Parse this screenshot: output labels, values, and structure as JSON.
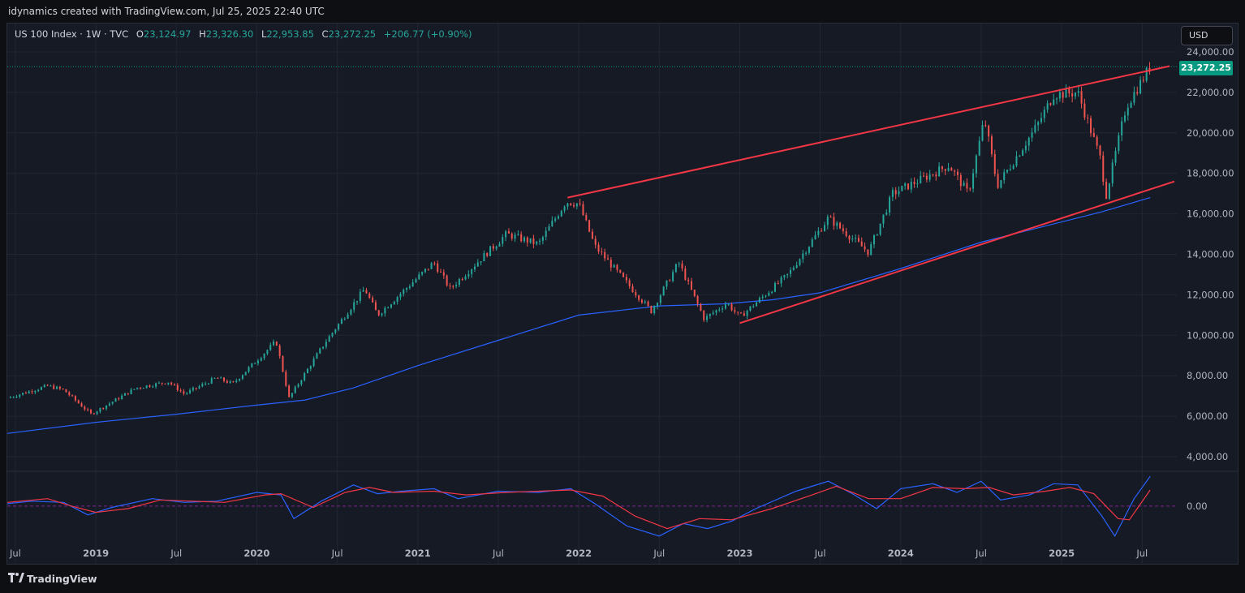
{
  "header": {
    "title": "idynamics created with TradingView.com, Jul 25, 2025 22:40 UTC"
  },
  "legend": {
    "symbol": "US 100 Index · 1W · TVC",
    "o_label": "O",
    "o": "23,124.97",
    "h_label": "H",
    "h": "23,326.30",
    "l_label": "L",
    "l": "22,953.85",
    "c_label": "C",
    "c": "23,272.25",
    "change": "+206.77 (+0.90%)"
  },
  "currency": "USD",
  "last_price_label": "23,272.25",
  "footer": {
    "brand": "TradingView"
  },
  "colors": {
    "up": "#26a69a",
    "down": "#ef5350",
    "ma": "#2962ff",
    "trendline": "#f23645",
    "osc_fast": "#2962ff",
    "osc_slow": "#f23645"
  },
  "chart_data": [
    {
      "type": "candlestick",
      "timeframe": "1W",
      "ylim": [
        3000,
        25000
      ],
      "y_ticks": [
        "24,000.00",
        "22,000.00",
        "20,000.00",
        "18,000.00",
        "16,000.00",
        "14,000.00",
        "12,000.00",
        "10,000.00",
        "8,000.00",
        "6,000.00",
        "4,000.00"
      ],
      "y_tick_values": [
        24000,
        22000,
        20000,
        18000,
        16000,
        14000,
        12000,
        10000,
        8000,
        6000,
        4000
      ],
      "x_range": [
        2018.45,
        2025.7
      ],
      "x_ticks": [
        {
          "label": "Jul",
          "t": 2018.5
        },
        {
          "label": "2019",
          "t": 2019.0
        },
        {
          "label": "Jul",
          "t": 2019.5
        },
        {
          "label": "2020",
          "t": 2020.0
        },
        {
          "label": "Jul",
          "t": 2020.5
        },
        {
          "label": "2021",
          "t": 2021.0
        },
        {
          "label": "Jul",
          "t": 2021.5
        },
        {
          "label": "2022",
          "t": 2022.0
        },
        {
          "label": "Jul",
          "t": 2022.5
        },
        {
          "label": "2023",
          "t": 2023.0
        },
        {
          "label": "Jul",
          "t": 2023.5
        },
        {
          "label": "2024",
          "t": 2024.0
        },
        {
          "label": "Jul",
          "t": 2024.5
        },
        {
          "label": "2025",
          "t": 2025.0
        },
        {
          "label": "Jul",
          "t": 2025.5
        }
      ],
      "price_path": [
        [
          2018.45,
          6900
        ],
        [
          2018.7,
          7500
        ],
        [
          2018.8,
          7300
        ],
        [
          2018.97,
          6100
        ],
        [
          2019.25,
          7400
        ],
        [
          2019.45,
          7700
        ],
        [
          2019.55,
          7100
        ],
        [
          2019.75,
          7900
        ],
        [
          2019.85,
          7600
        ],
        [
          2020.12,
          9700
        ],
        [
          2020.2,
          6900
        ],
        [
          2020.42,
          9600
        ],
        [
          2020.67,
          12300
        ],
        [
          2020.75,
          11000
        ],
        [
          2021.1,
          13600
        ],
        [
          2021.2,
          12300
        ],
        [
          2021.55,
          15000
        ],
        [
          2021.75,
          14500
        ],
        [
          2021.92,
          16600
        ],
        [
          2022.0,
          16500
        ],
        [
          2022.1,
          14400
        ],
        [
          2022.45,
          11200
        ],
        [
          2022.62,
          13600
        ],
        [
          2022.78,
          10800
        ],
        [
          2022.92,
          11600
        ],
        [
          2023.0,
          10900
        ],
        [
          2023.3,
          13000
        ],
        [
          2023.55,
          15800
        ],
        [
          2023.8,
          14100
        ],
        [
          2023.95,
          17000
        ],
        [
          2024.3,
          18400
        ],
        [
          2024.42,
          17000
        ],
        [
          2024.52,
          20700
        ],
        [
          2024.6,
          17400
        ],
        [
          2024.85,
          20400
        ],
        [
          2024.95,
          21900
        ],
        [
          2025.1,
          22000
        ],
        [
          2025.25,
          18500
        ],
        [
          2025.27,
          16700
        ],
        [
          2025.4,
          21300
        ],
        [
          2025.55,
          23272
        ]
      ],
      "moving_average": [
        [
          2018.45,
          5150
        ],
        [
          2019.0,
          5700
        ],
        [
          2019.5,
          6100
        ],
        [
          2020.0,
          6550
        ],
        [
          2020.3,
          6800
        ],
        [
          2020.6,
          7400
        ],
        [
          2021.0,
          8500
        ],
        [
          2021.5,
          9750
        ],
        [
          2022.0,
          11000
        ],
        [
          2022.5,
          11450
        ],
        [
          2022.9,
          11550
        ],
        [
          2023.2,
          11750
        ],
        [
          2023.5,
          12100
        ],
        [
          2024.0,
          13300
        ],
        [
          2024.5,
          14600
        ],
        [
          2025.0,
          15600
        ],
        [
          2025.25,
          16100
        ],
        [
          2025.55,
          16800
        ]
      ],
      "trendlines": [
        {
          "name": "upper",
          "from": [
            2021.93,
            16800
          ],
          "to": [
            2025.67,
            23300
          ]
        },
        {
          "name": "lower",
          "from": [
            2023.0,
            10600
          ],
          "to": [
            2025.7,
            17600
          ]
        }
      ],
      "last_price": 23272.25,
      "last_price_line": true
    },
    {
      "type": "line",
      "panel": "oscillator",
      "y_ticks": [
        "0.00"
      ],
      "y_tick_values": [
        0
      ],
      "ylim": [
        -1.5,
        1.3
      ],
      "series": [
        {
          "role": "fast",
          "points": [
            [
              2018.45,
              0.1
            ],
            [
              2018.6,
              0.2
            ],
            [
              2018.8,
              0.15
            ],
            [
              2018.95,
              -0.35
            ],
            [
              2019.1,
              -0.05
            ],
            [
              2019.35,
              0.3
            ],
            [
              2019.55,
              0.15
            ],
            [
              2019.75,
              0.2
            ],
            [
              2020.0,
              0.55
            ],
            [
              2020.15,
              0.45
            ],
            [
              2020.23,
              -0.5
            ],
            [
              2020.4,
              0.2
            ],
            [
              2020.6,
              0.85
            ],
            [
              2020.75,
              0.5
            ],
            [
              2020.9,
              0.6
            ],
            [
              2021.1,
              0.7
            ],
            [
              2021.25,
              0.3
            ],
            [
              2021.5,
              0.6
            ],
            [
              2021.75,
              0.55
            ],
            [
              2021.95,
              0.7
            ],
            [
              2022.1,
              0.1
            ],
            [
              2022.3,
              -0.8
            ],
            [
              2022.5,
              -1.2
            ],
            [
              2022.65,
              -0.7
            ],
            [
              2022.8,
              -0.9
            ],
            [
              2022.95,
              -0.6
            ],
            [
              2023.1,
              -0.1
            ],
            [
              2023.35,
              0.6
            ],
            [
              2023.55,
              1.0
            ],
            [
              2023.7,
              0.5
            ],
            [
              2023.85,
              -0.1
            ],
            [
              2024.0,
              0.7
            ],
            [
              2024.2,
              0.9
            ],
            [
              2024.35,
              0.55
            ],
            [
              2024.5,
              1.0
            ],
            [
              2024.62,
              0.25
            ],
            [
              2024.8,
              0.45
            ],
            [
              2024.95,
              0.9
            ],
            [
              2025.1,
              0.85
            ],
            [
              2025.25,
              -0.4
            ],
            [
              2025.33,
              -1.2
            ],
            [
              2025.45,
              0.3
            ],
            [
              2025.55,
              1.2
            ]
          ]
        },
        {
          "role": "slow",
          "points": [
            [
              2018.45,
              0.15
            ],
            [
              2018.7,
              0.3
            ],
            [
              2018.85,
              0.0
            ],
            [
              2019.0,
              -0.25
            ],
            [
              2019.2,
              -0.1
            ],
            [
              2019.4,
              0.25
            ],
            [
              2019.6,
              0.2
            ],
            [
              2019.8,
              0.15
            ],
            [
              2020.05,
              0.45
            ],
            [
              2020.15,
              0.5
            ],
            [
              2020.35,
              -0.05
            ],
            [
              2020.55,
              0.55
            ],
            [
              2020.7,
              0.75
            ],
            [
              2020.85,
              0.55
            ],
            [
              2021.1,
              0.6
            ],
            [
              2021.3,
              0.45
            ],
            [
              2021.55,
              0.55
            ],
            [
              2021.75,
              0.6
            ],
            [
              2021.95,
              0.65
            ],
            [
              2022.15,
              0.4
            ],
            [
              2022.35,
              -0.4
            ],
            [
              2022.55,
              -0.9
            ],
            [
              2022.75,
              -0.5
            ],
            [
              2022.95,
              -0.55
            ],
            [
              2023.2,
              -0.1
            ],
            [
              2023.45,
              0.45
            ],
            [
              2023.6,
              0.8
            ],
            [
              2023.8,
              0.3
            ],
            [
              2024.0,
              0.3
            ],
            [
              2024.2,
              0.75
            ],
            [
              2024.4,
              0.7
            ],
            [
              2024.55,
              0.75
            ],
            [
              2024.7,
              0.45
            ],
            [
              2024.9,
              0.6
            ],
            [
              2025.05,
              0.75
            ],
            [
              2025.2,
              0.5
            ],
            [
              2025.35,
              -0.5
            ],
            [
              2025.42,
              -0.55
            ],
            [
              2025.55,
              0.65
            ]
          ]
        }
      ]
    }
  ]
}
